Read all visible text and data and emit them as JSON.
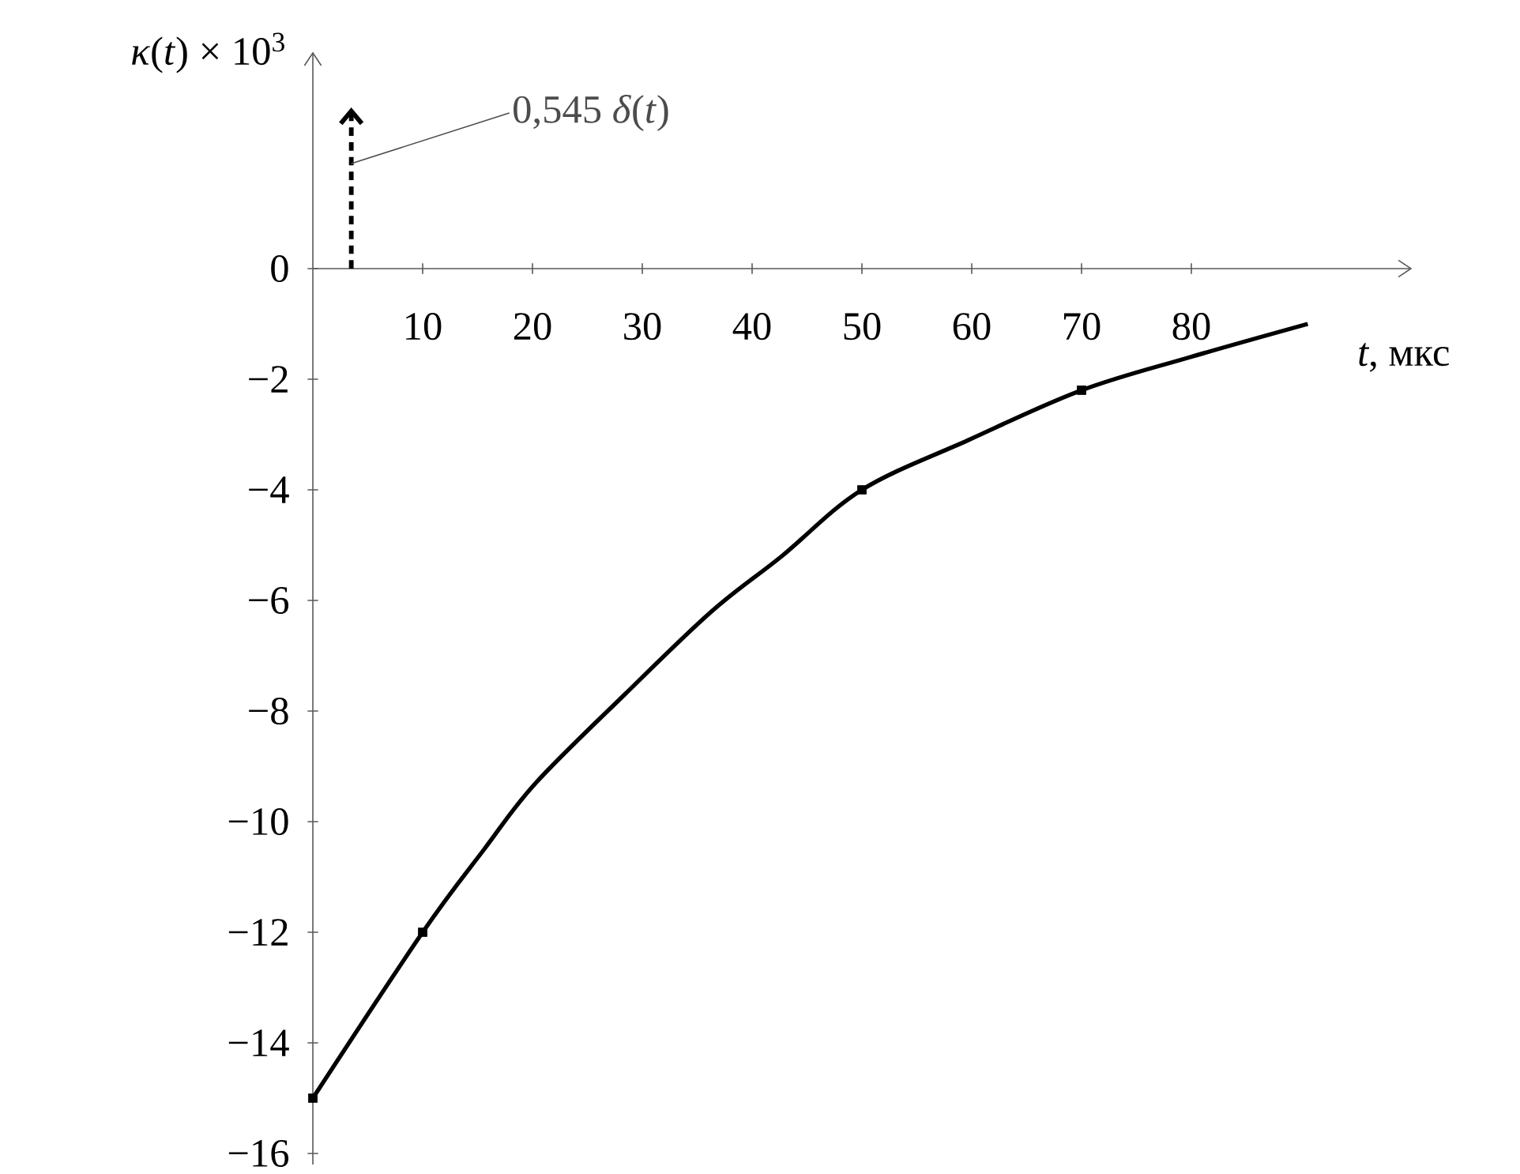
{
  "chart_data": {
    "type": "line",
    "xlabel": "*t*, мкс",
    "ylabel": "*κ*(*t*) × 10$^{3}$",
    "xlim": [
      0,
      100
    ],
    "ylim": [
      -16.2,
      3.9
    ],
    "xticks": [
      10,
      20,
      30,
      40,
      50,
      60,
      70,
      80
    ],
    "yticks": [
      {
        "value": -16,
        "label": "−16"
      },
      {
        "value": -14,
        "label": "−14"
      },
      {
        "value": -12,
        "label": "−12"
      },
      {
        "value": -10,
        "label": "−10"
      },
      {
        "value": -8,
        "label": "−8"
      },
      {
        "value": -6,
        "label": "−6"
      },
      {
        "value": -4,
        "label": "−4"
      },
      {
        "value": -2,
        "label": "−2"
      },
      {
        "value": 0,
        "label": "0"
      }
    ],
    "series": [
      {
        "color": "#000000",
        "marker": "none",
        "line_style": "solid",
        "x": [
          0,
          10,
          15.6,
          20.3,
          28.4,
          36.3,
          42.7,
          50,
          59.7,
          70,
          79.9,
          90.6
        ],
        "values": [
          -15,
          -12,
          -10.5,
          -9.3,
          -7.7,
          -6.2,
          -5.2,
          -4,
          -3.1,
          -2.2,
          -1.6,
          -1.0
        ]
      },
      {
        "type": "scatter",
        "color": "#000000",
        "marker": "square",
        "x": [
          0,
          10,
          50,
          70
        ],
        "values": [
          -15,
          -12,
          -4,
          -2.2
        ]
      },
      {
        "type": "line",
        "color": "#000000",
        "marker": "none",
        "line_style": "dashed",
        "x": [
          3.5,
          3.5
        ],
        "values": [
          0,
          2.85
        ]
      }
    ],
    "annotations": [
      {
        "text": "0,545 *δ*(*t*)",
        "x": 3.5,
        "y": 1.9
      }
    ]
  }
}
